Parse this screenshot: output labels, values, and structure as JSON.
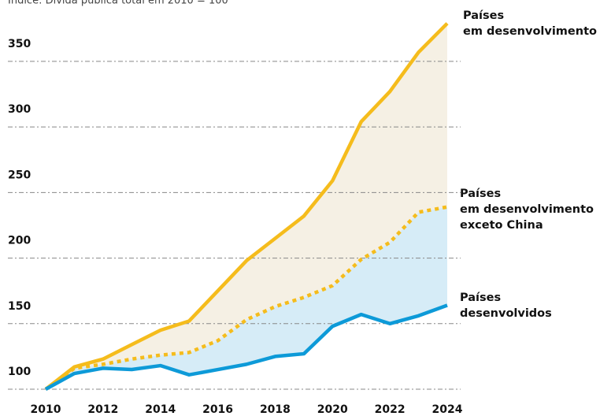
{
  "chart_data": {
    "type": "line",
    "subtitle": "Índice: Dívida pública total em 2010 = 100",
    "x": [
      2010,
      2011,
      2012,
      2013,
      2014,
      2015,
      2016,
      2017,
      2018,
      2019,
      2020,
      2021,
      2022,
      2023,
      2024
    ],
    "series": [
      {
        "name": "Países\nem desenvolvimento",
        "color": "#f5bc1c",
        "fill": "#f5f0e4",
        "style": "solid",
        "values": [
          100,
          117,
          123,
          134,
          145,
          152,
          175,
          198,
          215,
          232,
          259,
          304,
          327,
          357,
          379
        ]
      },
      {
        "name": "Países\nem desenvolvimento\nexceto China",
        "color": "#f5bc1c",
        "fill": "#d6ecf7",
        "style": "dotted",
        "values": [
          100,
          116,
          119,
          123,
          126,
          128,
          137,
          153,
          163,
          170,
          179,
          199,
          212,
          235,
          239
        ]
      },
      {
        "name": "Países\ndesenvolvidos",
        "color": "#0d9ad8",
        "style": "solid",
        "values": [
          100,
          112,
          116,
          115,
          118,
          111,
          115,
          119,
          125,
          127,
          148,
          157,
          150,
          156,
          164
        ]
      }
    ],
    "xlim": [
      2010,
      2024
    ],
    "xticks": [
      2010,
      2012,
      2014,
      2016,
      2018,
      2020,
      2022,
      2024
    ],
    "ylim": [
      100,
      380
    ],
    "yticks": [
      100,
      150,
      200,
      250,
      300,
      350
    ],
    "grid": true
  }
}
